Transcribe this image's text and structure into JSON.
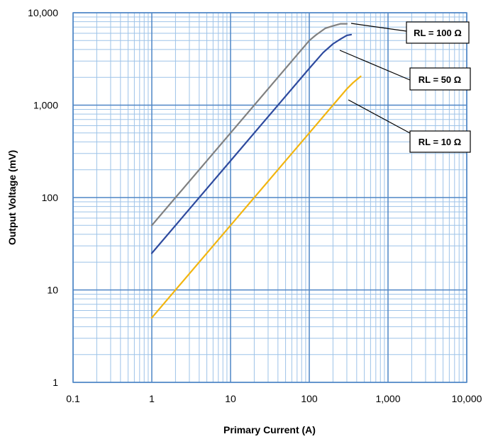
{
  "chart_data": {
    "type": "line",
    "xlabel": "Primary Current (A)",
    "ylabel": "Output Voltage (mV)",
    "xscale": "log",
    "yscale": "log",
    "xlim": [
      0.1,
      10000
    ],
    "ylim": [
      1,
      10000
    ],
    "grid": true,
    "x_ticks": [
      "0.1",
      "1",
      "10",
      "100",
      "1,000",
      "10,000"
    ],
    "y_ticks": [
      "1",
      "10",
      "100",
      "1,000",
      "10,000"
    ],
    "series": [
      {
        "name": "RL = 100 Ω",
        "color": "#808080",
        "x": [
          1,
          10,
          100,
          120,
          160,
          200,
          250,
          300
        ],
        "y": [
          50,
          500,
          5000,
          5700,
          6800,
          7200,
          7600,
          7600
        ]
      },
      {
        "name": "RL = 50 Ω",
        "color": "#2E4A9E",
        "x": [
          1,
          10,
          100,
          150,
          200,
          250,
          300,
          340
        ],
        "y": [
          25,
          250,
          2500,
          3700,
          4600,
          5200,
          5700,
          5800
        ]
      },
      {
        "name": "RL = 10 Ω",
        "color": "#F2B50F",
        "x": [
          1,
          10,
          100,
          200,
          300,
          360,
          450
        ],
        "y": [
          5,
          50,
          500,
          1000,
          1500,
          1750,
          2050
        ]
      }
    ],
    "callouts": [
      "RL = 100 Ω",
      "RL = 50 Ω",
      "RL = 10 Ω"
    ]
  }
}
